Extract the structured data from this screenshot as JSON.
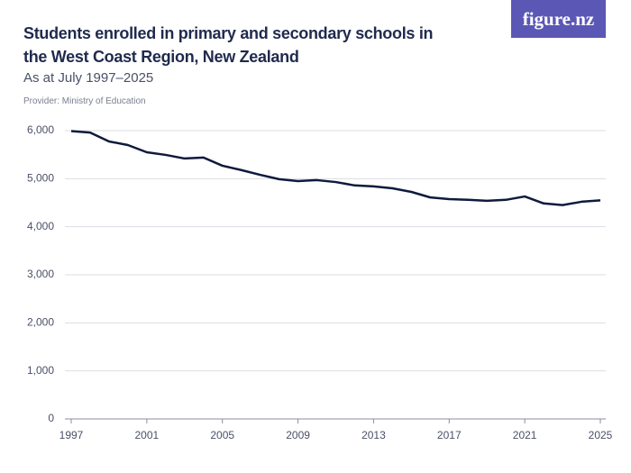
{
  "chart_data": {
    "type": "line",
    "title": "Students enrolled in primary and secondary schools in the West Coast Region, New Zealand",
    "subtitle": "As at July 1997–2025",
    "provider": "Provider: Ministry of Education",
    "logo": "figure.nz",
    "x": [
      1997,
      1998,
      1999,
      2000,
      2001,
      2002,
      2003,
      2004,
      2005,
      2006,
      2007,
      2008,
      2009,
      2010,
      2011,
      2012,
      2013,
      2014,
      2015,
      2016,
      2017,
      2018,
      2019,
      2020,
      2021,
      2022,
      2023,
      2024,
      2025
    ],
    "series": [
      {
        "name": "Students",
        "color": "#0f1a3c",
        "values": [
          5990,
          5960,
          5775,
          5700,
          5550,
          5495,
          5420,
          5440,
          5270,
          5180,
          5080,
          4990,
          4950,
          4970,
          4930,
          4860,
          4840,
          4800,
          4725,
          4610,
          4575,
          4560,
          4540,
          4560,
          4630,
          4485,
          4450,
          4520,
          4550
        ]
      }
    ],
    "xlim": [
      1997,
      2025
    ],
    "xticks": [
      1997,
      2001,
      2005,
      2009,
      2013,
      2017,
      2021,
      2025
    ],
    "ylim": [
      0,
      6000
    ],
    "yticks": [
      0,
      {
        "value": 1000,
        "label": "1,000"
      },
      {
        "value": 2000,
        "label": "2,000"
      },
      {
        "value": 3000,
        "label": "3,000"
      },
      {
        "value": 4000,
        "label": "4,000"
      },
      {
        "value": 5000,
        "label": "5,000"
      },
      {
        "value": 6000,
        "label": "6,000"
      }
    ],
    "grid": true
  }
}
